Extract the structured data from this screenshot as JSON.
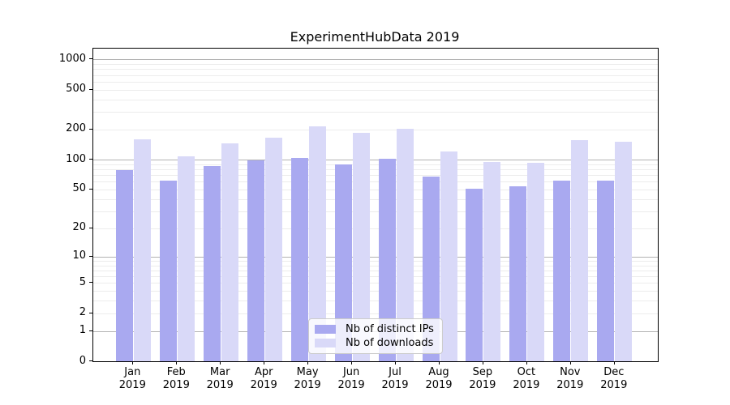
{
  "title": "ExperimentHubData 2019",
  "chart_data": {
    "type": "bar",
    "title": "ExperimentHubData 2019",
    "categories": [
      "Jan 2019",
      "Feb 2019",
      "Mar 2019",
      "Apr 2019",
      "May 2019",
      "Jun 2019",
      "Jul 2019",
      "Aug 2019",
      "Sep 2019",
      "Oct 2019",
      "Nov 2019",
      "Dec 2019"
    ],
    "series": [
      {
        "name": "Nb of distinct IPs",
        "color": "#a9a9f0",
        "values": [
          79,
          61,
          86,
          98,
          104,
          90,
          102,
          67,
          51,
          54,
          61,
          62
        ]
      },
      {
        "name": "Nb of downloads",
        "color": "#d9d9f8",
        "values": [
          160,
          107,
          145,
          167,
          214,
          185,
          204,
          121,
          95,
          93,
          156,
          150
        ]
      }
    ],
    "xlabel": "",
    "ylabel": "",
    "yscale": "log1p",
    "ylim": [
      0,
      1280
    ],
    "yticks": [
      1000,
      500,
      200,
      100,
      50,
      20,
      10,
      5,
      2,
      1,
      0
    ],
    "grid": true,
    "legend_position": "lower center"
  },
  "y_axis": {
    "tick_labels": [
      "1000",
      "500",
      "200",
      "100",
      "50",
      "20",
      "10",
      "5",
      "2",
      "1",
      "0"
    ]
  },
  "x_axis": {
    "months": [
      "Jan",
      "Feb",
      "Mar",
      "Apr",
      "May",
      "Jun",
      "Jul",
      "Aug",
      "Sep",
      "Oct",
      "Nov",
      "Dec"
    ],
    "year": "2019"
  },
  "legend": {
    "items": [
      {
        "label": "Nb of distinct IPs",
        "color": "#a9a9f0"
      },
      {
        "label": "Nb of downloads",
        "color": "#d9d9f8"
      }
    ]
  },
  "colors": {
    "bar_distinct_ips": "#a9a9f0",
    "bar_downloads": "#d9d9f8",
    "grid_major": "#b2b2b2",
    "grid_minor": "#ececec",
    "spine": "#000000",
    "background": "#ffffff"
  }
}
